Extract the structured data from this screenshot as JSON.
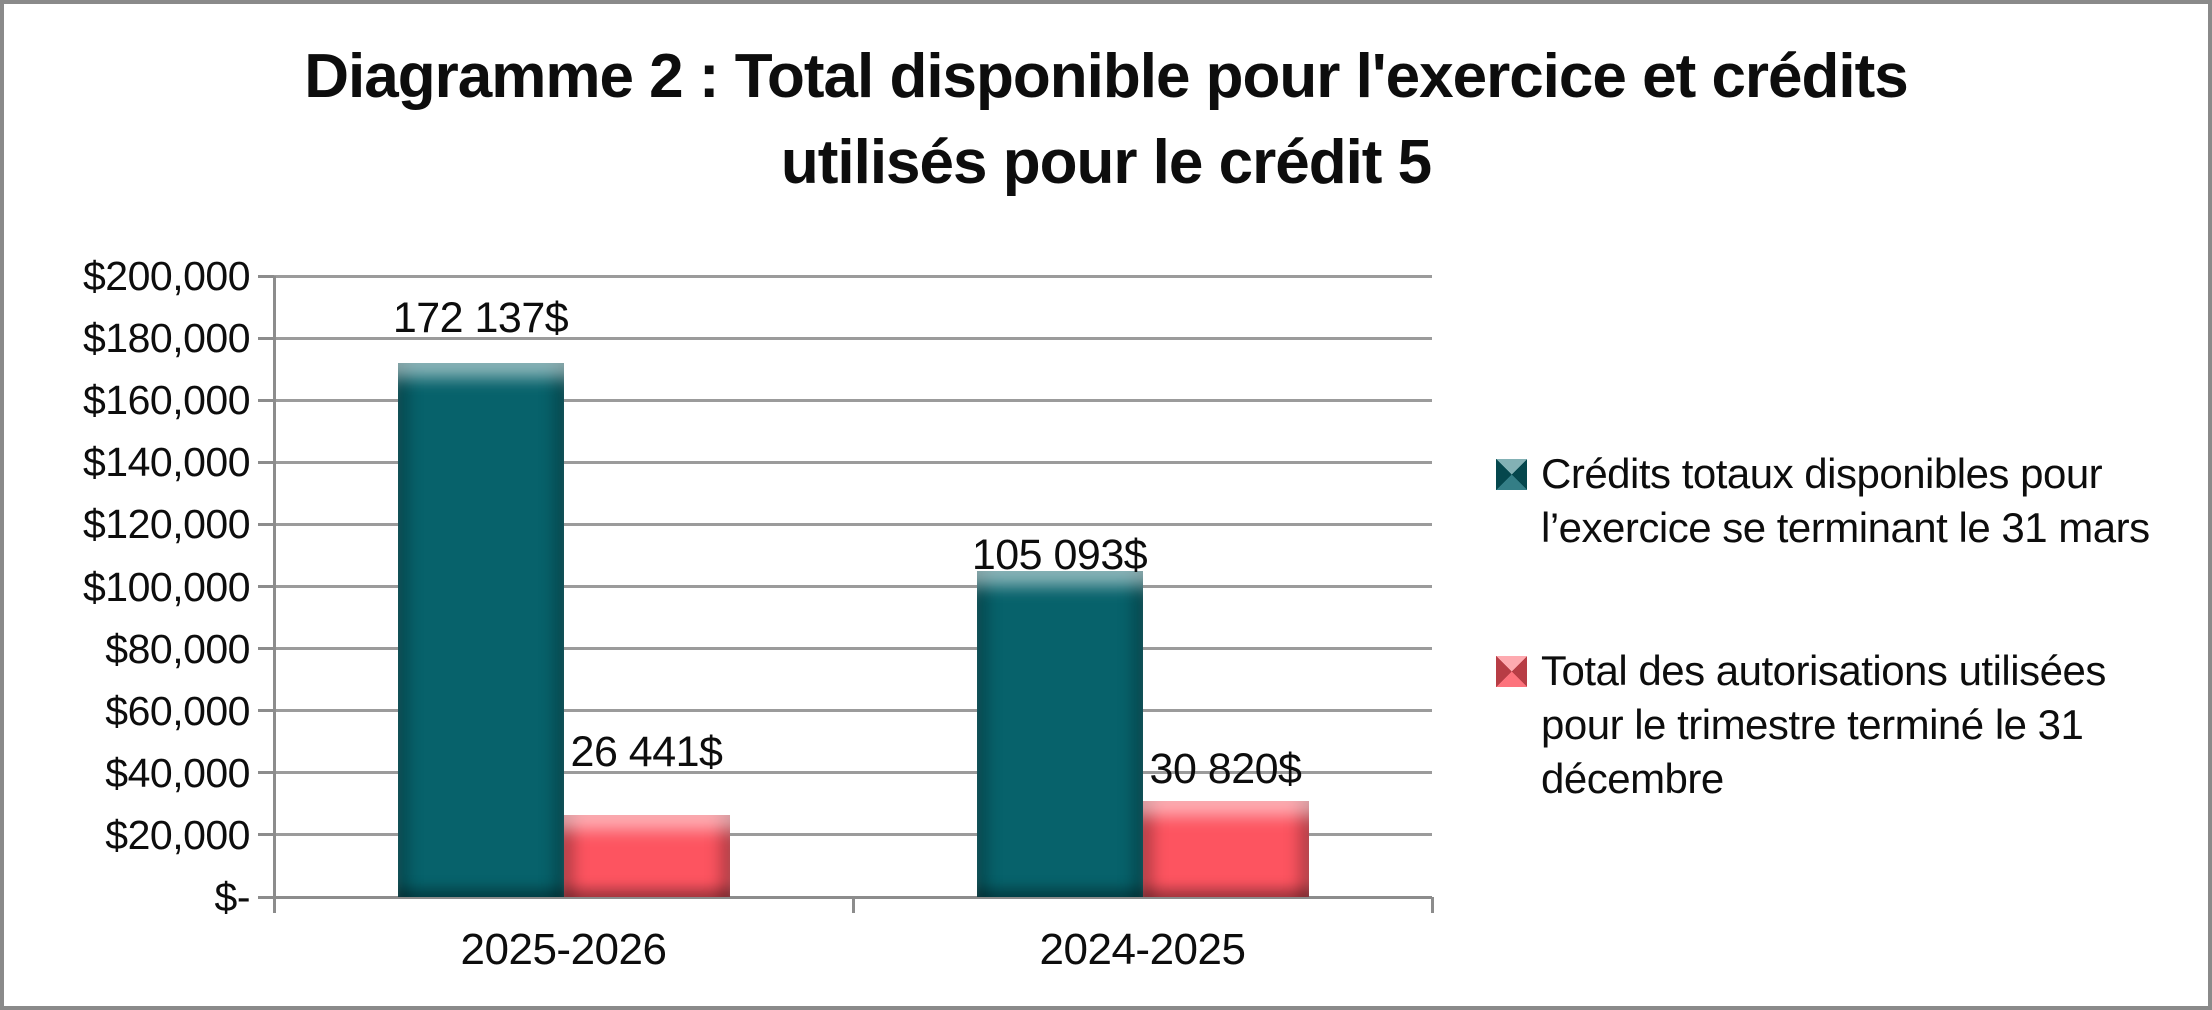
{
  "window": {
    "background": "#ffffff",
    "border_color": "#8a8a8a"
  },
  "title": {
    "lines": [
      "Diagramme 2 : Total disponible pour l'exercice et crédits",
      "utilisés pour le crédit 5"
    ]
  },
  "chart_data": {
    "type": "bar",
    "title": "Diagramme 2 : Total disponible pour l'exercice et crédits utilisés pour le crédit 5",
    "categories": [
      "2025-2026",
      "2024-2025"
    ],
    "series": [
      {
        "name": "Crédits totaux disponibles pour l’exercice se terminant le 31 mars",
        "color": "#07626B",
        "values": [
          172137,
          105093
        ],
        "data_labels": [
          "172 137$",
          "105 093$"
        ]
      },
      {
        "name": "Total des autorisations utilisées pour le trimestre terminé le 31 décembre",
        "color": "#FD5460",
        "values": [
          26441,
          30820
        ],
        "data_labels": [
          "26 441$",
          "30 820$"
        ]
      }
    ],
    "ylim": [
      0,
      200000
    ],
    "ytick_step": 20000,
    "ytick_labels": [
      "$200,000",
      "$180,000",
      "$160,000",
      "$140,000",
      "$120,000",
      "$100,000",
      "$80,000",
      "$60,000",
      "$40,000",
      "$20,000",
      "$-"
    ],
    "grid": true,
    "gridline_color": "#9b9b9b",
    "axis_color": "#8c8c8c",
    "legend_position": "right",
    "legend": [
      {
        "color": "#07626B",
        "label_lines": [
          "Crédits totaux disponibles pour",
          "l’exercice se terminant le 31 mars"
        ]
      },
      {
        "color": "#FD5460",
        "label_lines": [
          "Total des autorisations utilisées",
          "pour le trimestre terminé le 31",
          "décembre"
        ]
      }
    ]
  }
}
